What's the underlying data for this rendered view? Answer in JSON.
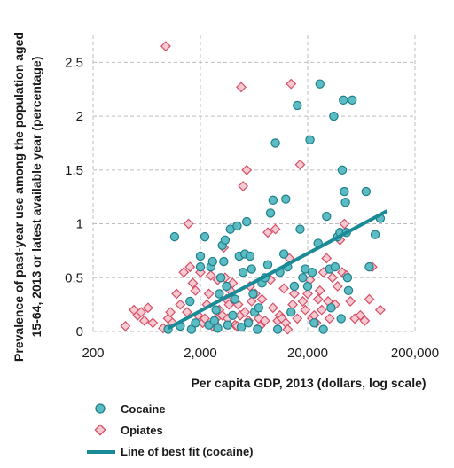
{
  "chart_data": {
    "type": "scatter",
    "x_scale": "log",
    "xlabel": "Per capita GDP, 2013 (dollars, log scale)",
    "ylabel": "Prevalence of past-year use among the population aged 15-64, 2013 or latest available year (percentage)",
    "xlim": [
      200,
      200000
    ],
    "ylim": [
      0,
      2.75
    ],
    "x_ticks": [
      200,
      2000,
      20000,
      200000
    ],
    "x_tick_labels": [
      "200",
      "2,000",
      "20,000",
      "200,000"
    ],
    "y_ticks": [
      0,
      0.5,
      1,
      1.5,
      2,
      2.5
    ],
    "y_tick_labels": [
      "0",
      "0.5",
      "1",
      "1.5",
      "2",
      "2.5"
    ],
    "grid": {
      "x": true,
      "y": true,
      "style": "dashed"
    },
    "legend_position": "bottom-left",
    "colors": {
      "cocaine": "#5bbcc4",
      "cocaine_edge": "#1f7f8a",
      "opiates": "#e0667a",
      "fit": "#1a8a96"
    },
    "series": [
      {
        "name": "Cocaine",
        "marker": "circle",
        "points": [
          [
            1000,
            0.02
          ],
          [
            1150,
            0.88
          ],
          [
            1300,
            0.05
          ],
          [
            1600,
            0.28
          ],
          [
            1650,
            0.02
          ],
          [
            1800,
            0.08
          ],
          [
            2000,
            0.7
          ],
          [
            2000,
            0.6
          ],
          [
            2200,
            0.88
          ],
          [
            2400,
            0.06
          ],
          [
            2500,
            0.6
          ],
          [
            2600,
            0.65
          ],
          [
            2700,
            0.1
          ],
          [
            2800,
            0.2
          ],
          [
            2900,
            0.03
          ],
          [
            3000,
            0.35
          ],
          [
            3100,
            0.5
          ],
          [
            3200,
            0.8
          ],
          [
            3300,
            0.65
          ],
          [
            3400,
            0.85
          ],
          [
            3500,
            0.42
          ],
          [
            3600,
            0.06
          ],
          [
            3800,
            0.95
          ],
          [
            4000,
            0.15
          ],
          [
            4200,
            0.3
          ],
          [
            4400,
            0.98
          ],
          [
            4600,
            0.7
          ],
          [
            4800,
            0.04
          ],
          [
            5000,
            0.55
          ],
          [
            5200,
            0.72
          ],
          [
            5400,
            1.02
          ],
          [
            5600,
            0.08
          ],
          [
            5800,
            0.7
          ],
          [
            6000,
            0.58
          ],
          [
            6200,
            0.35
          ],
          [
            6400,
            0.18
          ],
          [
            6800,
            0.02
          ],
          [
            7000,
            0.22
          ],
          [
            7500,
            0.45
          ],
          [
            8000,
            0.5
          ],
          [
            8500,
            0.62
          ],
          [
            9000,
            1.1
          ],
          [
            9500,
            1.22
          ],
          [
            10000,
            1.75
          ],
          [
            10500,
            0.02
          ],
          [
            11000,
            0.55
          ],
          [
            12000,
            0.72
          ],
          [
            12500,
            1.23
          ],
          [
            13000,
            0.6
          ],
          [
            14000,
            0.18
          ],
          [
            15000,
            0.42
          ],
          [
            16000,
            2.1
          ],
          [
            17000,
            0.95
          ],
          [
            18000,
            0.5
          ],
          [
            19000,
            0.58
          ],
          [
            20000,
            0.42
          ],
          [
            21000,
            1.78
          ],
          [
            22000,
            0.55
          ],
          [
            23000,
            0.08
          ],
          [
            25000,
            0.82
          ],
          [
            26000,
            2.3
          ],
          [
            28000,
            0.02
          ],
          [
            30000,
            1.07
          ],
          [
            32000,
            0.58
          ],
          [
            33000,
            0.22
          ],
          [
            35000,
            2.0
          ],
          [
            36000,
            0.6
          ],
          [
            38000,
            0.88
          ],
          [
            40000,
            0.92
          ],
          [
            41000,
            0.12
          ],
          [
            42000,
            1.5
          ],
          [
            43000,
            2.15
          ],
          [
            44000,
            1.3
          ],
          [
            45000,
            1.2
          ],
          [
            46000,
            0.92
          ],
          [
            47000,
            0.5
          ],
          [
            48000,
            0.38
          ],
          [
            52000,
            2.15
          ],
          [
            70000,
            1.3
          ],
          [
            75000,
            0.6
          ],
          [
            85000,
            0.9
          ],
          [
            95000,
            1.05
          ]
        ]
      },
      {
        "name": "Opiates",
        "marker": "diamond",
        "points": [
          [
            400,
            0.05
          ],
          [
            480,
            0.2
          ],
          [
            520,
            0.15
          ],
          [
            560,
            0.18
          ],
          [
            600,
            0.1
          ],
          [
            650,
            0.22
          ],
          [
            720,
            0.08
          ],
          [
            900,
            0.03
          ],
          [
            950,
            2.65
          ],
          [
            1000,
            0.12
          ],
          [
            1050,
            0.18
          ],
          [
            1100,
            0.08
          ],
          [
            1200,
            0.35
          ],
          [
            1300,
            0.25
          ],
          [
            1400,
            0.55
          ],
          [
            1500,
            0.18
          ],
          [
            1550,
            1.0
          ],
          [
            1600,
            0.6
          ],
          [
            1700,
            0.45
          ],
          [
            1800,
            0.38
          ],
          [
            1900,
            0.15
          ],
          [
            2000,
            0.55
          ],
          [
            2100,
            0.08
          ],
          [
            2200,
            0.12
          ],
          [
            2300,
            0.25
          ],
          [
            2400,
            0.35
          ],
          [
            2500,
            0.52
          ],
          [
            2600,
            0.05
          ],
          [
            2700,
            0.08
          ],
          [
            2800,
            0.12
          ],
          [
            2900,
            0.48
          ],
          [
            3000,
            0.2
          ],
          [
            3200,
            0.15
          ],
          [
            3300,
            0.78
          ],
          [
            3400,
            0.5
          ],
          [
            3500,
            0.3
          ],
          [
            3600,
            0.12
          ],
          [
            3700,
            0.25
          ],
          [
            3800,
            0.38
          ],
          [
            4000,
            0.45
          ],
          [
            4200,
            0.06
          ],
          [
            4400,
            0.05
          ],
          [
            4500,
            0.25
          ],
          [
            4700,
            0.15
          ],
          [
            4800,
            2.27
          ],
          [
            5000,
            1.35
          ],
          [
            5200,
            0.18
          ],
          [
            5400,
            1.5
          ],
          [
            5600,
            0.1
          ],
          [
            5800,
            0.42
          ],
          [
            6000,
            0.28
          ],
          [
            6500,
            0.35
          ],
          [
            7000,
            0.12
          ],
          [
            7200,
            0.05
          ],
          [
            7500,
            0.3
          ],
          [
            8000,
            0.1
          ],
          [
            8500,
            0.92
          ],
          [
            9000,
            0.48
          ],
          [
            9500,
            0.22
          ],
          [
            10000,
            0.95
          ],
          [
            10500,
            0.1
          ],
          [
            11000,
            0.15
          ],
          [
            11500,
            0.12
          ],
          [
            12000,
            0.4
          ],
          [
            12500,
            0.08
          ],
          [
            13000,
            0.02
          ],
          [
            13500,
            0.68
          ],
          [
            14000,
            2.3
          ],
          [
            14500,
            0.25
          ],
          [
            15000,
            0.35
          ],
          [
            16000,
            0.12
          ],
          [
            17000,
            1.55
          ],
          [
            18000,
            0.28
          ],
          [
            19000,
            0.2
          ],
          [
            20000,
            0.35
          ],
          [
            21000,
            0.48
          ],
          [
            22000,
            0.12
          ],
          [
            23000,
            0.15
          ],
          [
            24000,
            0.08
          ],
          [
            25000,
            0.3
          ],
          [
            26000,
            0.38
          ],
          [
            27000,
            0.2
          ],
          [
            28000,
            0.55
          ],
          [
            30000,
            0.68
          ],
          [
            31000,
            0.28
          ],
          [
            32000,
            0.12
          ],
          [
            34000,
            0.5
          ],
          [
            36000,
            0.25
          ],
          [
            38000,
            0.42
          ],
          [
            40000,
            0.85
          ],
          [
            42000,
            0.55
          ],
          [
            44000,
            1.0
          ],
          [
            46000,
            0.52
          ],
          [
            50000,
            0.28
          ],
          [
            55000,
            0.12
          ],
          [
            62000,
            0.15
          ],
          [
            68000,
            0.1
          ],
          [
            75000,
            0.3
          ],
          [
            80000,
            0.6
          ],
          [
            95000,
            0.2
          ]
        ]
      },
      {
        "name": "Line of best fit (cocaine)",
        "type": "line",
        "points": [
          [
            1000,
            0.03
          ],
          [
            110000,
            1.12
          ]
        ]
      }
    ]
  }
}
